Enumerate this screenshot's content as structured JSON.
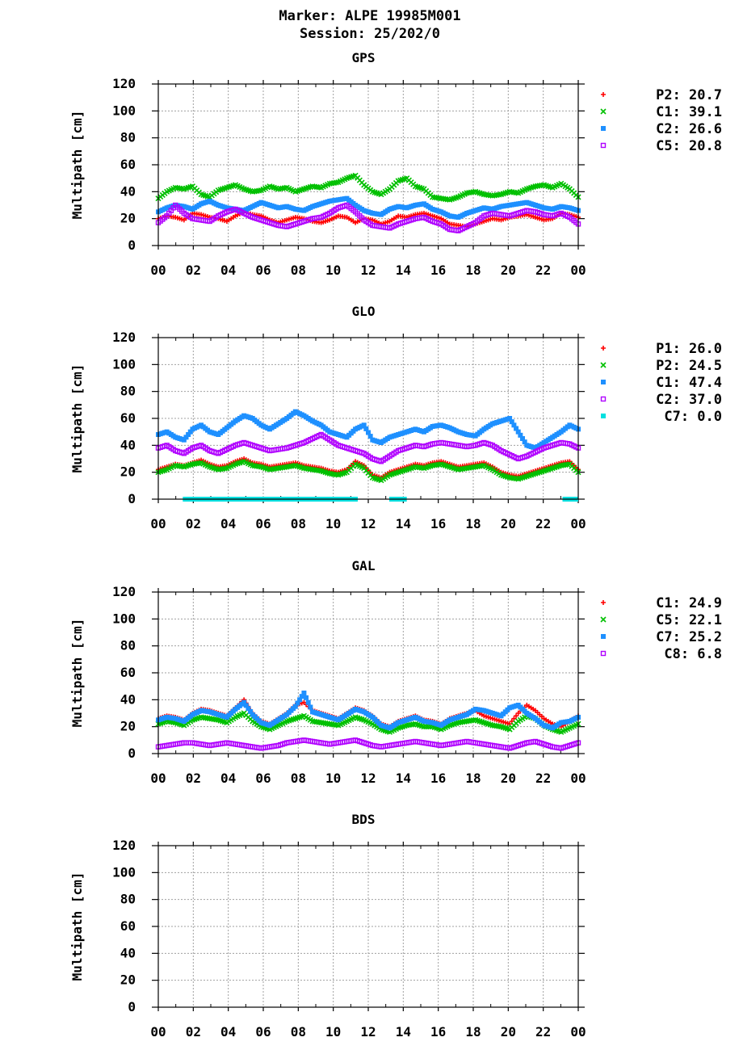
{
  "figure": {
    "title_line1": "Marker: ALPE 19985M001",
    "title_line2": "Session: 25/202/0"
  },
  "chart_data": [
    {
      "type": "scatter",
      "title": "GPS",
      "ylabel": "Multipath [cm]",
      "ylim": [
        0,
        120
      ],
      "yticks": [
        0,
        20,
        40,
        60,
        80,
        100,
        120
      ],
      "xlim": [
        0,
        24
      ],
      "xticks": [
        "00",
        "02",
        "04",
        "06",
        "08",
        "10",
        "12",
        "14",
        "16",
        "18",
        "20",
        "22",
        "00"
      ],
      "grid": true,
      "legend_position": "right",
      "series": [
        {
          "name": "P2",
          "mean_label": "P2: 20.7",
          "color": "#ff0000",
          "marker": "plus",
          "y": [
            20,
            22,
            21,
            19,
            24,
            23,
            21,
            20,
            18,
            22,
            25,
            23,
            22,
            19,
            17,
            19,
            21,
            20,
            18,
            17,
            19,
            22,
            21,
            17,
            20,
            19,
            16,
            18,
            22,
            21,
            23,
            24,
            22,
            20,
            16,
            15,
            14,
            16,
            18,
            20,
            19,
            21,
            22,
            23,
            21,
            19,
            20,
            24,
            23,
            21
          ]
        },
        {
          "name": "C1",
          "mean_label": "C1: 39.1",
          "color": "#00c000",
          "marker": "x",
          "y": [
            35,
            40,
            43,
            42,
            44,
            38,
            36,
            41,
            43,
            45,
            42,
            40,
            41,
            44,
            42,
            43,
            40,
            42,
            44,
            43,
            46,
            47,
            50,
            52,
            45,
            40,
            38,
            42,
            48,
            50,
            44,
            42,
            36,
            35,
            34,
            36,
            39,
            40,
            38,
            37,
            38,
            40,
            39,
            42,
            44,
            45,
            43,
            46,
            42,
            36
          ]
        },
        {
          "name": "C2",
          "mean_label": "C2: 26.6",
          "color": "#1e90ff",
          "marker": "square",
          "y": [
            25,
            28,
            30,
            29,
            27,
            31,
            33,
            30,
            28,
            27,
            26,
            29,
            32,
            30,
            28,
            29,
            27,
            26,
            29,
            31,
            33,
            34,
            35,
            30,
            26,
            24,
            23,
            27,
            29,
            28,
            30,
            31,
            27,
            25,
            22,
            21,
            24,
            26,
            28,
            27,
            29,
            30,
            31,
            32,
            30,
            28,
            27,
            29,
            28,
            26
          ]
        },
        {
          "name": "C5",
          "mean_label": "C5: 20.8",
          "color": "#b000ff",
          "marker": "open-square",
          "y": [
            17,
            22,
            30,
            24,
            20,
            19,
            18,
            22,
            25,
            27,
            24,
            21,
            19,
            17,
            15,
            14,
            16,
            18,
            20,
            21,
            24,
            28,
            30,
            25,
            19,
            15,
            14,
            13,
            16,
            18,
            20,
            21,
            18,
            16,
            12,
            11,
            14,
            17,
            22,
            24,
            23,
            22,
            24,
            26,
            25,
            23,
            22,
            24,
            21,
            16
          ]
        }
      ]
    },
    {
      "type": "scatter",
      "title": "GLO",
      "ylabel": "Multipath [cm]",
      "ylim": [
        0,
        120
      ],
      "yticks": [
        0,
        20,
        40,
        60,
        80,
        100,
        120
      ],
      "xlim": [
        0,
        24
      ],
      "xticks": [
        "00",
        "02",
        "04",
        "06",
        "08",
        "10",
        "12",
        "14",
        "16",
        "18",
        "20",
        "22",
        "00"
      ],
      "grid": true,
      "legend_position": "right",
      "series": [
        {
          "name": "P1",
          "mean_label": "P1: 26.0",
          "color": "#ff0000",
          "marker": "plus",
          "y": [
            22,
            24,
            26,
            25,
            27,
            29,
            26,
            24,
            25,
            28,
            30,
            27,
            26,
            24,
            25,
            26,
            27,
            25,
            24,
            23,
            21,
            20,
            22,
            28,
            25,
            18,
            16,
            20,
            22,
            24,
            26,
            25,
            27,
            28,
            26,
            24,
            25,
            26,
            27,
            24,
            20,
            18,
            17,
            19,
            21,
            23,
            25,
            27,
            28,
            22
          ]
        },
        {
          "name": "P2",
          "mean_label": "P2: 24.5",
          "color": "#00c000",
          "marker": "x",
          "y": [
            20,
            22,
            25,
            24,
            26,
            27,
            24,
            22,
            23,
            26,
            28,
            25,
            24,
            22,
            23,
            24,
            25,
            23,
            22,
            21,
            19,
            18,
            20,
            26,
            23,
            16,
            14,
            18,
            20,
            22,
            24,
            23,
            25,
            26,
            24,
            22,
            23,
            24,
            25,
            22,
            18,
            16,
            15,
            17,
            19,
            21,
            23,
            25,
            26,
            20
          ]
        },
        {
          "name": "C1",
          "mean_label": "C1: 47.4",
          "color": "#1e90ff",
          "marker": "square",
          "y": [
            48,
            50,
            46,
            44,
            52,
            55,
            50,
            48,
            53,
            58,
            62,
            60,
            55,
            52,
            56,
            60,
            65,
            62,
            58,
            55,
            50,
            48,
            46,
            52,
            55,
            44,
            42,
            46,
            48,
            50,
            52,
            50,
            54,
            55,
            53,
            50,
            48,
            47,
            52,
            56,
            58,
            60,
            50,
            40,
            38,
            42,
            46,
            50,
            55,
            52
          ]
        },
        {
          "name": "C2",
          "mean_label": "C2: 37.0",
          "color": "#b000ff",
          "marker": "open-square",
          "y": [
            38,
            40,
            36,
            34,
            38,
            40,
            36,
            34,
            37,
            40,
            42,
            40,
            38,
            36,
            37,
            38,
            40,
            42,
            45,
            48,
            44,
            40,
            38,
            36,
            34,
            30,
            28,
            32,
            36,
            38,
            40,
            39,
            41,
            42,
            41,
            40,
            39,
            40,
            42,
            40,
            36,
            33,
            30,
            32,
            35,
            38,
            40,
            42,
            41,
            38
          ]
        },
        {
          "name": "C7",
          "mean_label": "C7: 0.0",
          "color": "#00e0e0",
          "marker": "square",
          "segments": [
            [
              1.4,
              11.4
            ],
            [
              13.2,
              14.2
            ],
            [
              23.1,
              24.0
            ]
          ],
          "y_value": 0
        }
      ]
    },
    {
      "type": "scatter",
      "title": "GAL",
      "ylabel": "Multipath [cm]",
      "ylim": [
        0,
        120
      ],
      "yticks": [
        0,
        20,
        40,
        60,
        80,
        100,
        120
      ],
      "xlim": [
        0,
        24
      ],
      "xticks": [
        "00",
        "02",
        "04",
        "06",
        "08",
        "10",
        "12",
        "14",
        "16",
        "18",
        "20",
        "22",
        "00"
      ],
      "grid": true,
      "legend_position": "right",
      "series": [
        {
          "name": "C1",
          "mean_label": "C1: 24.9",
          "color": "#ff0000",
          "marker": "plus",
          "y": [
            26,
            28,
            27,
            25,
            30,
            33,
            32,
            30,
            28,
            34,
            40,
            30,
            24,
            22,
            26,
            30,
            36,
            38,
            32,
            30,
            28,
            26,
            30,
            34,
            32,
            28,
            22,
            20,
            24,
            26,
            28,
            25,
            24,
            22,
            26,
            28,
            30,
            32,
            28,
            26,
            24,
            22,
            30,
            36,
            32,
            26,
            22,
            20,
            24,
            28
          ]
        },
        {
          "name": "C5",
          "mean_label": "C5: 22.1",
          "color": "#00c000",
          "marker": "x",
          "y": [
            22,
            24,
            23,
            21,
            25,
            27,
            26,
            25,
            23,
            27,
            30,
            24,
            20,
            18,
            21,
            24,
            26,
            28,
            24,
            23,
            22,
            21,
            24,
            27,
            25,
            22,
            18,
            16,
            19,
            21,
            22,
            20,
            20,
            18,
            21,
            23,
            24,
            25,
            23,
            21,
            20,
            18,
            24,
            28,
            26,
            21,
            18,
            16,
            19,
            22
          ]
        },
        {
          "name": "C7",
          "mean_label": "C7: 25.2",
          "color": "#1e90ff",
          "marker": "square",
          "y": [
            25,
            27,
            26,
            24,
            29,
            32,
            31,
            29,
            27,
            33,
            38,
            29,
            23,
            21,
            25,
            29,
            35,
            45,
            31,
            29,
            27,
            25,
            29,
            33,
            31,
            27,
            21,
            19,
            23,
            25,
            27,
            24,
            23,
            21,
            25,
            27,
            29,
            33,
            32,
            30,
            28,
            34,
            36,
            30,
            26,
            21,
            19,
            23,
            24,
            27
          ]
        },
        {
          "name": "C8",
          "mean_label": "C8: 6.8",
          "color": "#b000ff",
          "marker": "open-square",
          "y": [
            5,
            6,
            7,
            8,
            8,
            7,
            6,
            7,
            8,
            7,
            6,
            5,
            4,
            5,
            6,
            8,
            9,
            10,
            9,
            8,
            7,
            8,
            9,
            10,
            8,
            6,
            5,
            6,
            7,
            8,
            9,
            8,
            7,
            6,
            7,
            8,
            9,
            8,
            7,
            6,
            5,
            4,
            6,
            8,
            9,
            7,
            5,
            4,
            6,
            8
          ]
        }
      ]
    },
    {
      "type": "scatter",
      "title": "BDS",
      "ylabel": "Multipath [cm]",
      "ylim": [
        0,
        120
      ],
      "yticks": [
        0,
        20,
        40,
        60,
        80,
        100,
        120
      ],
      "xlim": [
        0,
        24
      ],
      "xticks": [
        "00",
        "02",
        "04",
        "06",
        "08",
        "10",
        "12",
        "14",
        "16",
        "18",
        "20",
        "22",
        "00"
      ],
      "grid": true,
      "legend_position": "right",
      "series": []
    }
  ]
}
